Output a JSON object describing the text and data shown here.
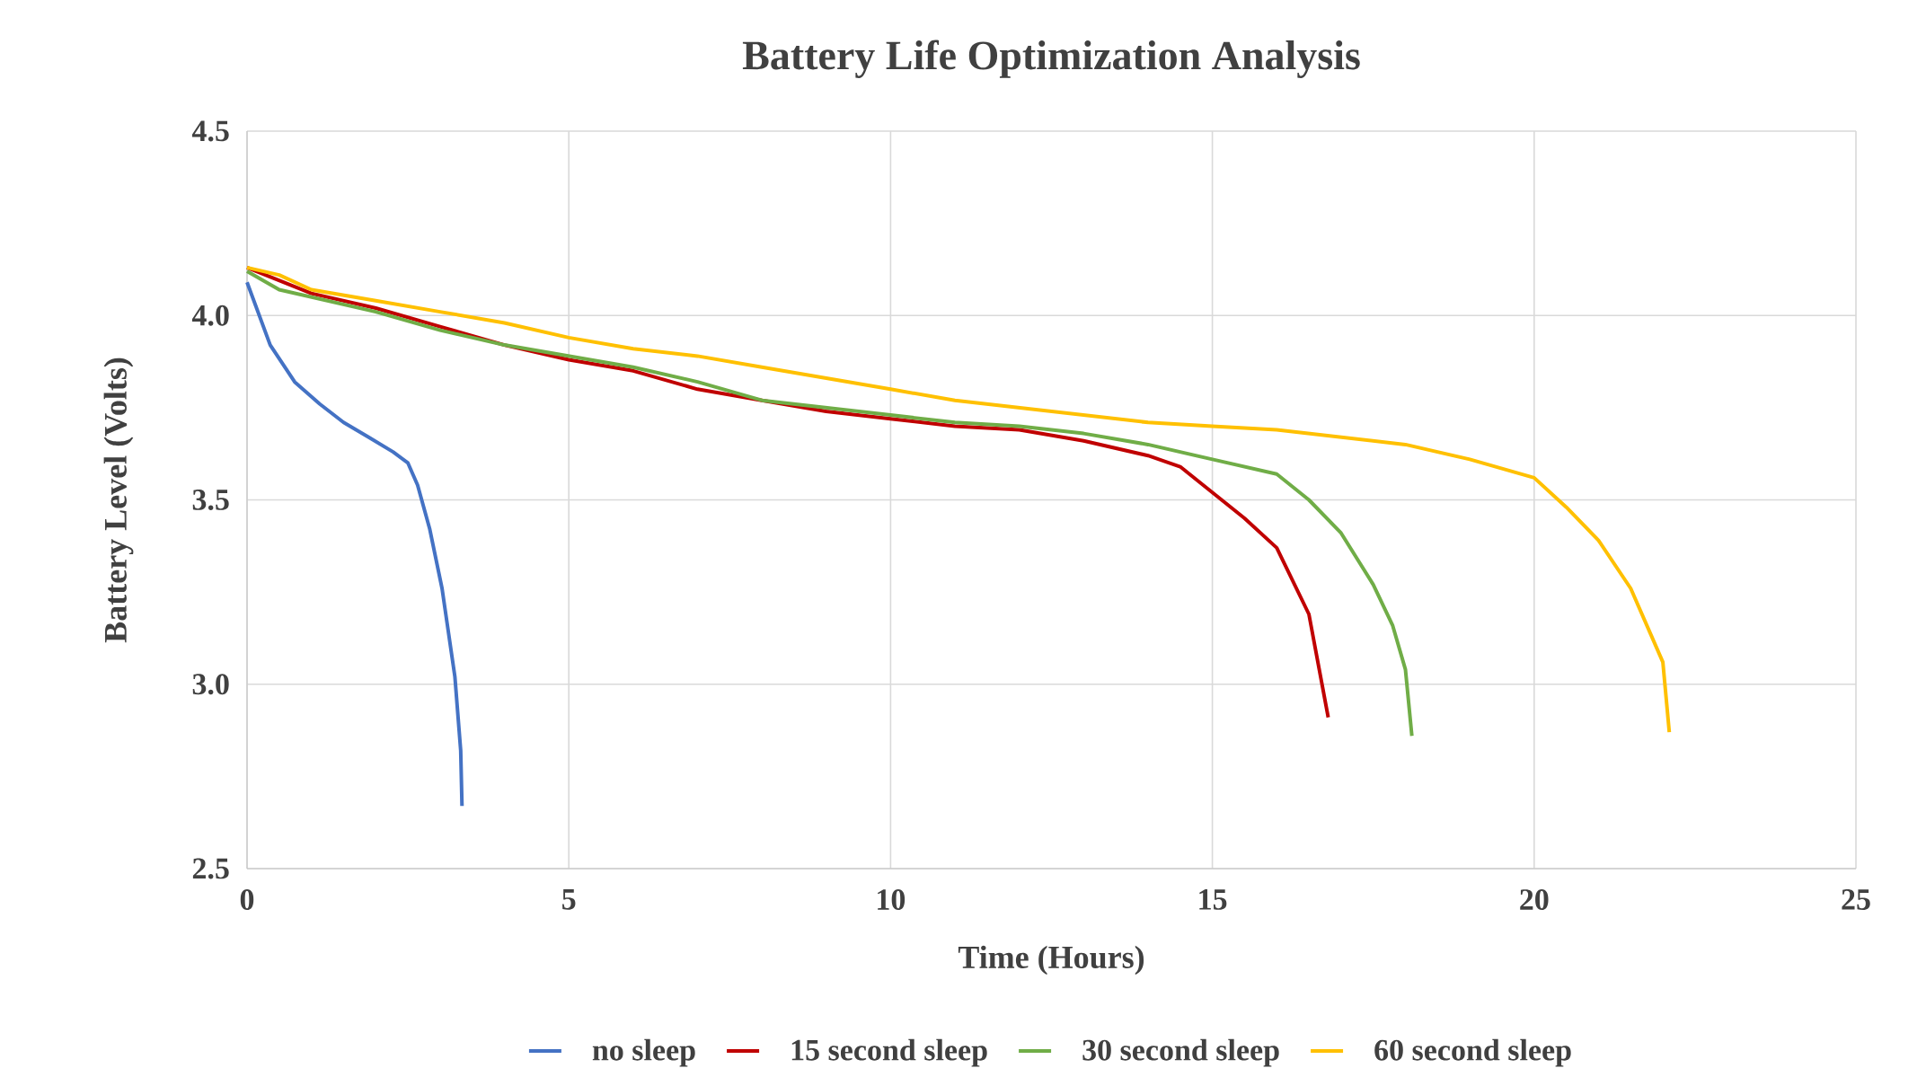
{
  "chart_data": {
    "type": "line",
    "title": "Battery Life Optimization Analysis",
    "xlabel": "Time (Hours)",
    "ylabel": "Battery Level (Volts)",
    "xlim": [
      0,
      25
    ],
    "ylim": [
      2.5,
      4.5
    ],
    "xticks": [
      0,
      5,
      10,
      15,
      20,
      25
    ],
    "yticks": [
      2.5,
      {
        "value": 3,
        "label": "3.0"
      },
      3.5,
      {
        "value": 4,
        "label": "4.0"
      },
      4.5
    ],
    "grid": true,
    "legend": "bottom",
    "line_style": "solid",
    "series": [
      {
        "name": "no sleep",
        "color": "#4472c4",
        "x": [
          0,
          0.36,
          0.74,
          1.13,
          1.5,
          1.89,
          2.27,
          2.5,
          2.65,
          2.84,
          3.03,
          3.23,
          3.32,
          3.34
        ],
        "values": [
          4.09,
          3.92,
          3.82,
          3.76,
          3.71,
          3.67,
          3.63,
          3.6,
          3.54,
          3.42,
          3.26,
          3.02,
          2.82,
          2.67
        ]
      },
      {
        "name": "15 second sleep",
        "color": "#c00000",
        "x": [
          0,
          1,
          2,
          3,
          4,
          5,
          6,
          7,
          8,
          9,
          10,
          11,
          12,
          13,
          14,
          14.5,
          15,
          15.5,
          16,
          16.5,
          16.8
        ],
        "values": [
          4.13,
          4.06,
          4.02,
          3.97,
          3.92,
          3.88,
          3.85,
          3.8,
          3.77,
          3.74,
          3.72,
          3.7,
          3.69,
          3.66,
          3.62,
          3.59,
          3.52,
          3.45,
          3.37,
          3.19,
          2.91
        ]
      },
      {
        "name": "30 second sleep",
        "color": "#70ad47",
        "x": [
          0,
          0.5,
          1,
          2,
          3,
          4,
          5,
          6,
          7,
          8,
          9,
          10,
          11,
          12,
          13,
          14,
          15,
          16,
          16.5,
          17,
          17.5,
          17.8,
          18,
          18.1
        ],
        "values": [
          4.12,
          4.07,
          4.05,
          4.01,
          3.96,
          3.92,
          3.89,
          3.86,
          3.82,
          3.77,
          3.75,
          3.73,
          3.71,
          3.7,
          3.68,
          3.65,
          3.61,
          3.57,
          3.5,
          3.41,
          3.27,
          3.16,
          3.04,
          2.86
        ]
      },
      {
        "name": "60 second sleep",
        "color": "#ffc000",
        "x": [
          0,
          0.5,
          1,
          2,
          3,
          4,
          5,
          6,
          7,
          8,
          9,
          10,
          11,
          12,
          13,
          14,
          15,
          16,
          17,
          18,
          19,
          20,
          20.5,
          21,
          21.5,
          22,
          22.1
        ],
        "values": [
          4.13,
          4.11,
          4.07,
          4.04,
          4.01,
          3.98,
          3.94,
          3.91,
          3.89,
          3.86,
          3.83,
          3.8,
          3.77,
          3.75,
          3.73,
          3.71,
          3.7,
          3.69,
          3.67,
          3.65,
          3.61,
          3.56,
          3.48,
          3.39,
          3.26,
          3.06,
          2.87
        ]
      }
    ]
  }
}
